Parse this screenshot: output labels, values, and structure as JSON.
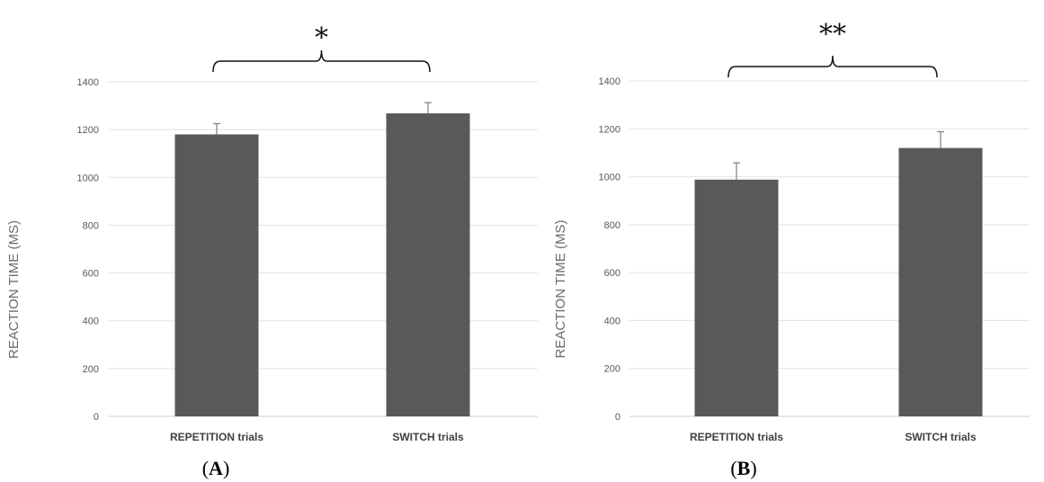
{
  "chart_data": [
    {
      "type": "bar",
      "panel": "(A)",
      "panel_letter": "A",
      "ylabel": "REACTION TIME (MS)",
      "categories": [
        "REPETITION trials",
        "SWITCH trials"
      ],
      "values": [
        1180,
        1268
      ],
      "errors": [
        45,
        45
      ],
      "ylim": [
        0,
        1400
      ],
      "yticks": [
        "0",
        "200",
        "400",
        "600",
        "800",
        "1000",
        "1200",
        "1400"
      ],
      "significance": "*",
      "grid": true,
      "bar_color": "#595959"
    },
    {
      "type": "bar",
      "panel": "(B)",
      "panel_letter": "B",
      "ylabel": "REACTION TIME (MS)",
      "categories": [
        "REPETITION trials",
        "SWITCH trials"
      ],
      "values": [
        988,
        1120
      ],
      "errors": [
        70,
        68
      ],
      "ylim": [
        0,
        1400
      ],
      "yticks": [
        "0",
        "200",
        "400",
        "600",
        "800",
        "1000",
        "1200",
        "1400"
      ],
      "significance": "**",
      "grid": true,
      "bar_color": "#595959"
    }
  ]
}
